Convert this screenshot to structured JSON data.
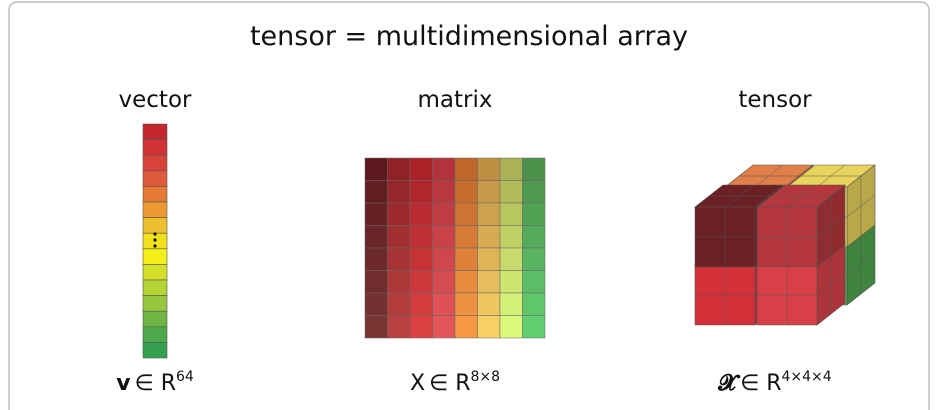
{
  "title": "tensor = multidimensional array",
  "panels": [
    {
      "label": "vector",
      "symbol": "v",
      "relation": "∈ R",
      "exponent": "64"
    },
    {
      "label": "matrix",
      "symbol": "X",
      "relation": "∈ R",
      "exponent": "8×8"
    },
    {
      "label": "tensor",
      "symbol": "𝓧",
      "relation": "∈ R",
      "exponent": "4×4×4"
    }
  ]
}
